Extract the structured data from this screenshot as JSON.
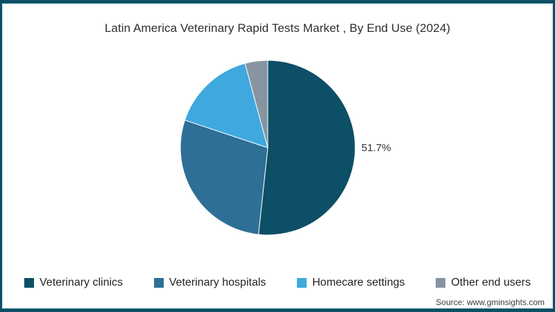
{
  "title": "Latin America Veterinary Rapid Tests Market , By End Use (2024)",
  "chart_data": {
    "type": "pie",
    "title": "Latin America Veterinary Rapid Tests Market , By End Use (2024)",
    "start_angle_deg": 0,
    "direction": "clockwise",
    "legend_position": "bottom",
    "data_label": "51.7%",
    "labeled_slice": "Veterinary clinics",
    "series": [
      {
        "name": "Veterinary clinics",
        "value": 51.7,
        "color": "#0d4f66"
      },
      {
        "name": "Veterinary hospitals",
        "value": 28.4,
        "color": "#2e6f96"
      },
      {
        "name": "Homecare settings",
        "value": 15.7,
        "color": "#3fa8de"
      },
      {
        "name": "Other end users",
        "value": 4.2,
        "color": "#8795a3"
      }
    ]
  },
  "frame": {
    "border_color": "#0d4f66",
    "inner_line_color": "#dcebf2"
  },
  "source": {
    "label": "Source: www.gminsights.com"
  }
}
